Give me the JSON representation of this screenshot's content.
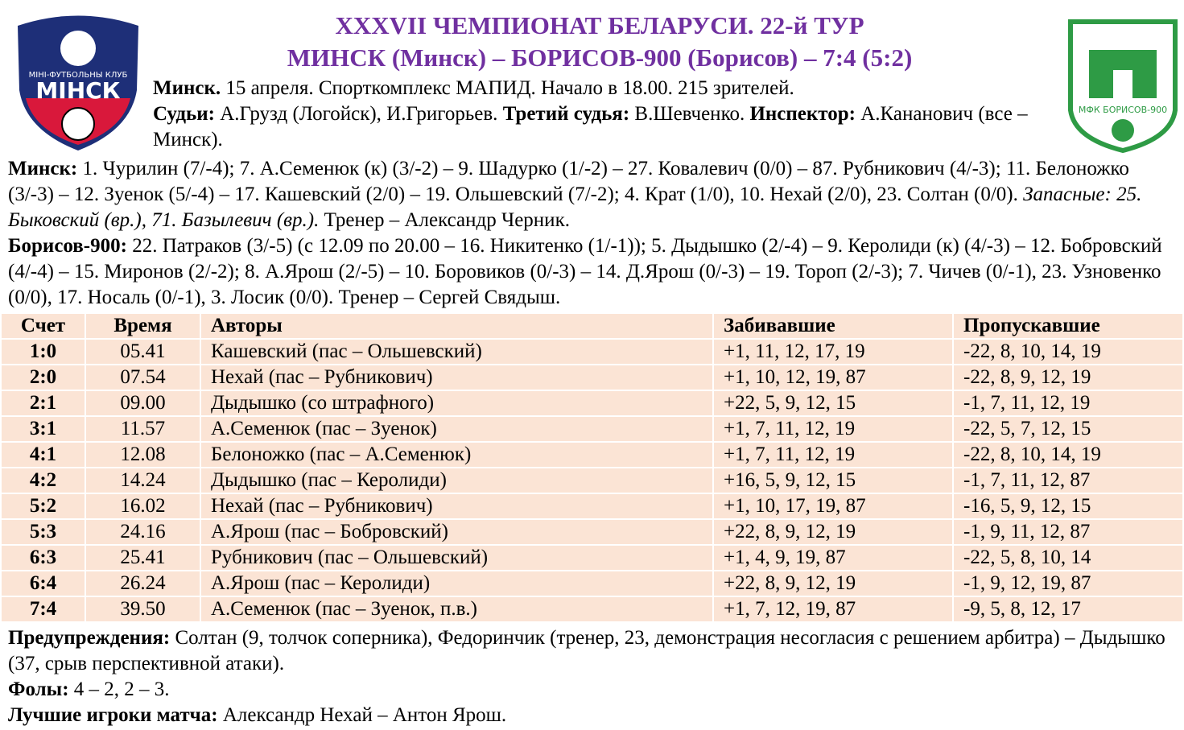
{
  "header": {
    "title": "XXXVII ЧЕМПИОНАТ БЕЛАРУСИ. 22-й ТУР",
    "subtitle": "МИНСК (Минск) – БОРИСОВ-900 (Борисов) – 7:4 (5:2)"
  },
  "logos": {
    "left": {
      "top_text": "МІНІ-ФУТБОЛЬНЫ КЛУБ",
      "name": "МІНСК"
    },
    "right": {
      "name": "МФК БОРИСОВ-900"
    }
  },
  "info": {
    "venue_label": "Минск.",
    "venue": "15 апреля. Спорткомплекс МАПИД. Начало в 18.00. 215 зрителей.",
    "referees_label": "Судьи:",
    "referees": "А.Грузд (Логойск), И.Григорьев.",
    "third_label": "Третий судья:",
    "third": "В.Шевченко.",
    "inspector_label": "Инспектор:",
    "inspector": "А.Кананович (все – Минск)."
  },
  "lineups": {
    "minsk": {
      "label": "Минск:",
      "players": "1. Чурилин (7/-4); 7. А.Семенюк (к) (3/-2) – 9. Шадурко (1/-2) – 27. Ковалевич (0/0) – 87. Рубникович (4/-3); 11. Белоножко (3/-3) – 12. Зуенок (5/-4) – 17. Кашевский (2/0) – 19. Ольшевский (7/-2); 4. Крат (1/0), 10. Нехай (2/0), 23. Солтан (0/0).",
      "subs": "Запасные: 25. Быковский (вр.), 71. Базылевич (вр.).",
      "coach": "Тренер – Александр Черник."
    },
    "borisov": {
      "label": "Борисов-900:",
      "players": "22. Патраков (3/-5) (с 12.09 по 20.00 – 16. Никитенко (1/-1)); 5. Дыдышко (2/-4) – 9. Керолиди (к) (4/-3) – 12. Бобровский (4/-4) – 15. Миронов (2/-2); 8. А.Ярош (2/-5) – 10. Боровиков (0/-3) – 14. Д.Ярош (0/-3) – 19. Тороп (2/-3); 7. Чичев (0/-1), 23. Узновенко (0/0), 17. Носаль (0/-1), 3. Лосик (0/0). Тренер – Сергей Свядыш."
    }
  },
  "table": {
    "headers": [
      "Счет",
      "Время",
      "Авторы",
      "Забивавшие",
      "Пропускавшие"
    ],
    "rows": [
      [
        "1:0",
        "05.41",
        "Кашевский (пас – Ольшевский)",
        "+1, 11, 12, 17, 19",
        "-22, 8, 10, 14, 19"
      ],
      [
        "2:0",
        "07.54",
        "Нехай (пас – Рубникович)",
        "+1, 10, 12, 19, 87",
        "-22, 8, 9, 12, 19"
      ],
      [
        "2:1",
        "09.00",
        "Дыдышко (со штрафного)",
        "+22, 5, 9, 12, 15",
        "-1, 7, 11, 12, 19"
      ],
      [
        "3:1",
        "11.57",
        "А.Семенюк (пас – Зуенок)",
        "+1, 7, 11, 12, 19",
        "-22, 5, 7, 12, 15"
      ],
      [
        "4:1",
        "12.08",
        "Белоножко (пас – А.Семенюк)",
        "+1, 7, 11, 12, 19",
        "-22, 8, 10, 14, 19"
      ],
      [
        "4:2",
        "14.24",
        "Дыдышко (пас – Керолиди)",
        "+16, 5, 9, 12, 15",
        "-1, 7, 11, 12, 87"
      ],
      [
        "5:2",
        "16.02",
        "Нехай (пас – Рубникович)",
        "+1, 10, 17, 19, 87",
        "-16, 5, 9, 12, 15"
      ],
      [
        "5:3",
        "24.16",
        "А.Ярош (пас – Бобровский)",
        "+22, 8, 9, 12, 19",
        "-1, 9, 11, 12, 87"
      ],
      [
        "6:3",
        "25.41",
        "Рубникович (пас – Ольшевский)",
        "+1, 4, 9, 19, 87",
        "-22, 5, 8, 10, 14"
      ],
      [
        "6:4",
        "26.24",
        "А.Ярош (пас – Керолиди)",
        "+22, 8, 9, 12, 19",
        "-1, 9, 12, 19, 87"
      ],
      [
        "7:4",
        "39.50",
        "А.Семенюк (пас – Зуенок, п.в.)",
        "+1, 7, 12, 19, 87",
        "-9, 5, 8, 12, 17"
      ]
    ]
  },
  "footer": {
    "warnings_label": "Предупреждения:",
    "warnings": "Солтан (9, толчок соперника), Федоринчик (тренер, 23, демонстрация несогласия с решением арбитра) – Дыдышко (37, срыв перспективной атаки).",
    "fouls_label": "Фолы:",
    "fouls": "4 – 2, 2 – 3.",
    "best_label": "Лучшие игроки матча:",
    "best": "Александр Нехай – Антон Ярош."
  }
}
